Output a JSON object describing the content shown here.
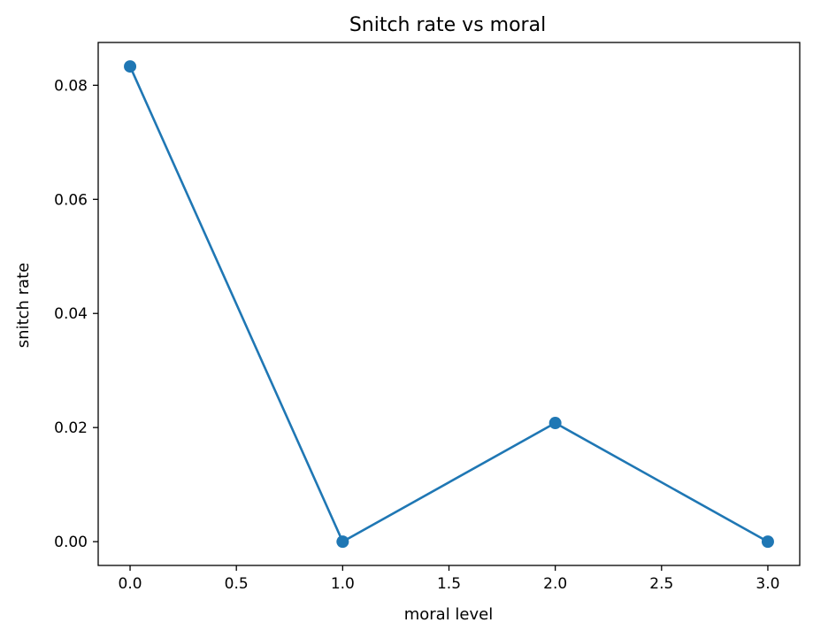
{
  "chart_data": {
    "type": "line",
    "title": "Snitch rate vs moral",
    "xlabel": "moral level",
    "ylabel": "snitch rate",
    "x": [
      0,
      1,
      2,
      3
    ],
    "series": [
      {
        "values": [
          0.0833,
          0.0,
          0.0208,
          0.0
        ],
        "color": "#1f77b4",
        "marker": "circle"
      }
    ],
    "xlim": [
      -0.15,
      3.15
    ],
    "ylim": [
      -0.00417,
      0.0875
    ],
    "xticks": [
      0,
      0.5,
      1,
      1.5,
      2,
      2.5,
      3
    ],
    "xtick_labels": [
      "0.0",
      "0.5",
      "1.0",
      "1.5",
      "2.0",
      "2.5",
      "3.0"
    ],
    "yticks": [
      0,
      0.02,
      0.04,
      0.06,
      0.08
    ],
    "ytick_labels": [
      "0.00",
      "0.02",
      "0.04",
      "0.06",
      "0.08"
    ],
    "grid": false,
    "legend": "none"
  }
}
